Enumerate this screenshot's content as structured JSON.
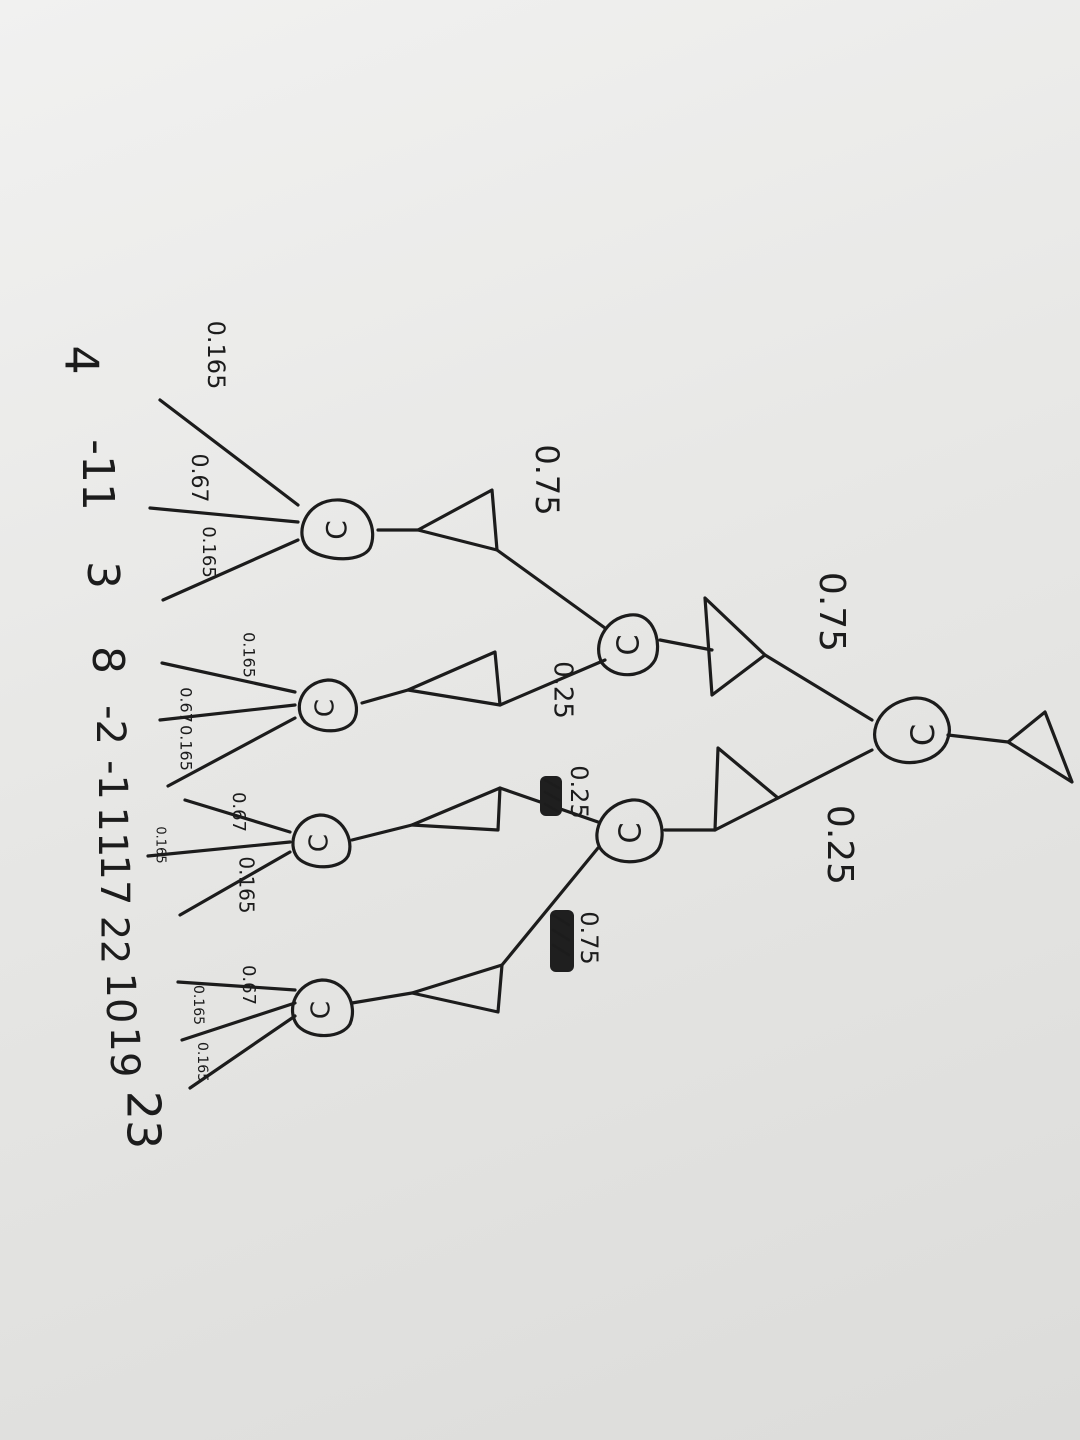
{
  "nodes": {
    "chance_letter": "C"
  },
  "labels": {
    "root_left": "0.75",
    "root_right": "0.25",
    "l1_left_a": "0.75",
    "l1_left_b": "0.25",
    "l1_right_a": "0.25",
    "l1_right_b": "0.75",
    "c1_a": "0.165",
    "c1_b": "0.67",
    "c1_c": "0.165",
    "c2_a": "0.165",
    "c2_b": "0.67",
    "c2_c": "0.165",
    "c3_a": "0.67",
    "c3_b": "0.165",
    "c3_c": "0.165",
    "c4_a": "0.67",
    "c4_b": "0.165",
    "c4_c": "0.165"
  },
  "leaf_values": [
    "4",
    "-11",
    "3",
    "8",
    "-2",
    "-1",
    "11",
    "17",
    "22",
    "10",
    "19",
    "23"
  ]
}
